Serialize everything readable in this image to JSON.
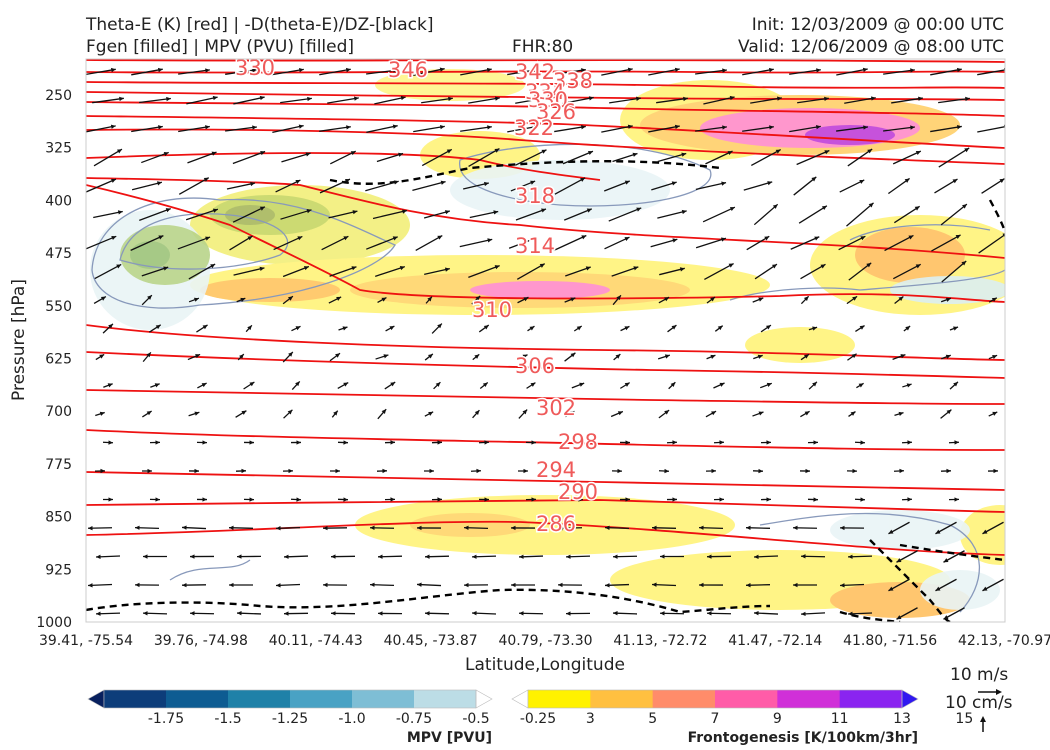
{
  "header": {
    "title_line1": "Theta-E (K) [red] | -D(theta-E)/DZ-[black]",
    "title_line2": "Fgen [filled] | MPV (PVU) [filled]",
    "fhr": "FHR:80",
    "init": "Init: 12/03/2009 @ 00:00 UTC",
    "valid": "Valid: 12/06/2009 @ 08:00 UTC"
  },
  "chart_data": {
    "type": "cross-section",
    "xlabel": "Latitude,Longitude",
    "ylabel": "Pressure [hPa]",
    "ylim": [
      1000,
      200
    ],
    "y_ticks": [
      "250",
      "325",
      "400",
      "475",
      "550",
      "625",
      "700",
      "775",
      "850",
      "925",
      "1000"
    ],
    "x_ticks": [
      "39.41, -75.54",
      "39.76, -74.98",
      "40.11, -74.43",
      "40.45, -73.87",
      "40.79, -73.30",
      "41.13, -72.72",
      "41.47, -72.14",
      "41.80, -71.56",
      "42.13, -70.97"
    ],
    "theta_e_labels": [
      "330",
      "346",
      "342",
      "338",
      "334",
      "330",
      "326",
      "322",
      "318",
      "314",
      "310",
      "306",
      "302",
      "298",
      "294",
      "290",
      "286"
    ],
    "series_colors": {
      "theta_e": "#ee1111",
      "dthetae_dz": "#000000",
      "vectors": "#111111",
      "mpv_contour": "#8899bb",
      "label": "#ef5a5a"
    }
  },
  "colorbars": {
    "mpv": {
      "label": "MPV [PVU]",
      "ticks": [
        "-1.75",
        "-1.5",
        "-1.25",
        "-1.0",
        "-0.75",
        "-0.5",
        "-0.25"
      ],
      "colors": [
        "#08205e",
        "#0d3d7a",
        "#0e5c92",
        "#1f81a8",
        "#49a2c4",
        "#7ebed5",
        "#bcdde6",
        "#ffffff"
      ]
    },
    "fgen": {
      "label": "Frontogenesis [K/100km/3hr]",
      "ticks": [
        "3",
        "5",
        "7",
        "9",
        "11",
        "13",
        "15"
      ],
      "colors": [
        "#ffffff",
        "#fff200",
        "#ffc040",
        "#ff8c6a",
        "#ff5ca8",
        "#d030d8",
        "#8a24f0",
        "#3018f0"
      ]
    }
  },
  "vector_key": {
    "horizontal": "10 m/s",
    "vertical": "10 cm/s"
  }
}
